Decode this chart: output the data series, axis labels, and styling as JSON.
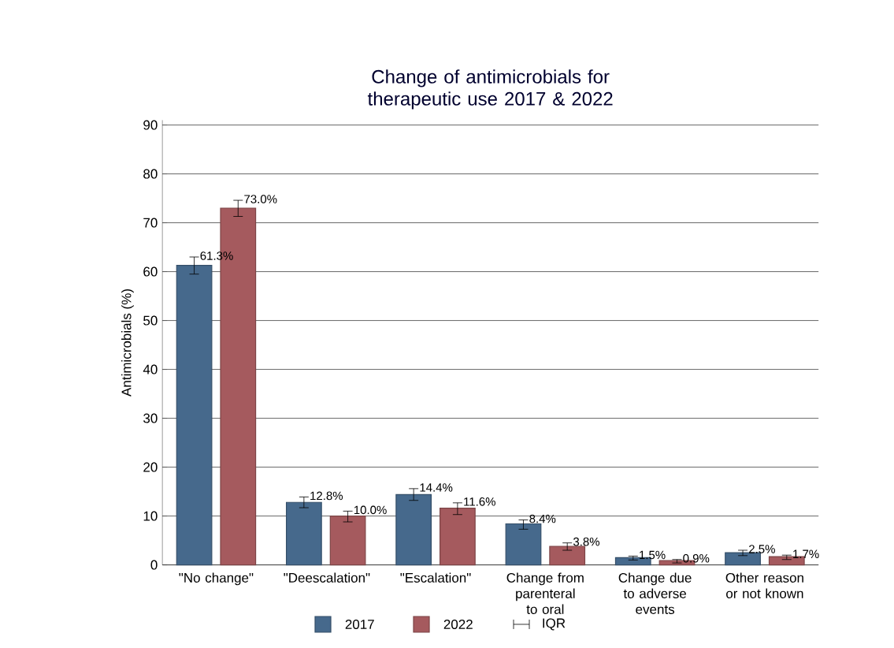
{
  "chart_data": {
    "type": "bar",
    "title": "Change of antimicrobials for therapeutic use 2017 & 2022",
    "ylabel": "Antimicrobials (%)",
    "categories": [
      "\"No change\"",
      "\"Deescalation\"",
      "\"Escalation\"",
      "Change from parenteral to oral",
      "Change due to adverse events",
      "Other reason or not known"
    ],
    "series": [
      {
        "name": "2017",
        "color": "#46698c",
        "values": [
          61.3,
          12.8,
          14.4,
          8.4,
          1.5,
          2.5
        ],
        "value_labels": [
          "61.3%",
          "12.8%",
          "14.4%",
          "8.4%",
          "1.5%",
          "2.5%"
        ],
        "errors": [
          [
            59.5,
            63.0
          ],
          [
            11.7,
            13.9
          ],
          [
            13.2,
            15.6
          ],
          [
            7.3,
            9.2
          ],
          [
            1.0,
            1.8
          ],
          [
            1.9,
            3.0
          ]
        ]
      },
      {
        "name": "2022",
        "color": "#a55a5e",
        "values": [
          73.0,
          10.0,
          11.6,
          3.8,
          0.9,
          1.7
        ],
        "value_labels": [
          "73.0%",
          "10.0%",
          "11.6%",
          "3.8%",
          "0.9%",
          "1.7%"
        ],
        "errors": [
          [
            71.3,
            74.6
          ],
          [
            8.8,
            11.0
          ],
          [
            10.3,
            12.7
          ],
          [
            3.0,
            4.5
          ],
          [
            0.4,
            1.1
          ],
          [
            1.1,
            2.0
          ]
        ]
      }
    ],
    "ylim": [
      0,
      91
    ],
    "yticks": [
      0,
      10,
      20,
      30,
      40,
      50,
      60,
      70,
      80,
      90
    ],
    "grid": "y",
    "legend": "bottom",
    "annotations": [
      "IQR"
    ]
  }
}
